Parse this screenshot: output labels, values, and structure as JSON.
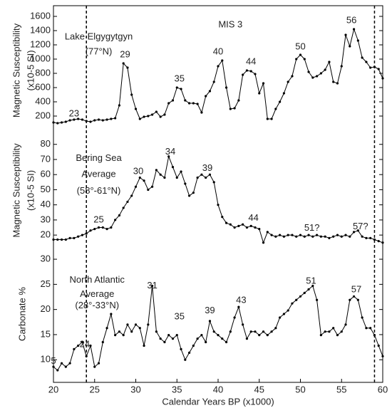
{
  "chart_data": [
    {
      "type": "line",
      "color": "#000000",
      "ylabel": [
        "Magnetic Susceptibility",
        "(x10-5 SI)"
      ],
      "name_lines": [
        "Lake Elgygytgyn",
        "(77°N)"
      ],
      "period_label": "MIS 3",
      "annotations": [
        "23",
        "29",
        "35",
        "40",
        "44",
        "50",
        "56"
      ],
      "ylim": [
        -70,
        1750
      ],
      "yticks": [
        200,
        400,
        600,
        800,
        1000,
        1200,
        1400,
        1600
      ],
      "x": [
        20,
        20.5,
        21,
        21.5,
        22,
        22.5,
        23,
        23.5,
        24,
        24.5,
        25,
        25.5,
        26,
        26.5,
        27,
        27.5,
        28,
        28.5,
        29,
        29.5,
        30,
        30.5,
        31,
        31.5,
        32,
        32.5,
        33,
        33.5,
        34,
        34.5,
        35,
        35.5,
        36,
        36.5,
        37,
        37.5,
        38,
        38.5,
        39,
        39.5,
        40,
        40.5,
        41,
        41.5,
        42,
        42.5,
        43,
        43.5,
        44,
        44.5,
        45,
        45.5,
        46,
        46.5,
        47,
        47.5,
        48,
        48.5,
        49,
        49.5,
        50,
        50.5,
        51,
        51.5,
        52,
        52.5,
        53,
        53.5,
        54,
        54.5,
        55,
        55.5,
        56,
        56.5,
        57,
        57.5,
        58,
        58.5,
        59,
        59.5,
        60
      ],
      "values": [
        110,
        100,
        110,
        120,
        140,
        150,
        160,
        150,
        130,
        120,
        140,
        150,
        140,
        150,
        160,
        170,
        350,
        940,
        880,
        500,
        300,
        160,
        190,
        200,
        220,
        260,
        190,
        220,
        380,
        420,
        600,
        580,
        420,
        380,
        380,
        370,
        250,
        480,
        550,
        680,
        900,
        980,
        600,
        300,
        310,
        420,
        780,
        840,
        830,
        790,
        520,
        660,
        160,
        160,
        300,
        400,
        520,
        680,
        760,
        1000,
        1060,
        1000,
        820,
        740,
        760,
        800,
        850,
        960,
        680,
        660,
        900,
        1340,
        1180,
        1420,
        1260,
        1020,
        960,
        880,
        890,
        860,
        730
      ]
    },
    {
      "type": "line",
      "color": "#000000",
      "ylabel": [
        "Magnetic Susceptibility",
        "(x10-5 SI)"
      ],
      "name_lines": [
        "Bering Sea",
        "Average",
        "(58°-61°N)"
      ],
      "annotations": [
        "25",
        "30",
        "34",
        "39",
        "44",
        "51?",
        "57?"
      ],
      "ylim": [
        13,
        86
      ],
      "yticks": [
        20,
        30,
        40,
        50,
        60,
        70,
        80
      ],
      "x": [
        20,
        20.5,
        21,
        21.5,
        22,
        22.5,
        23,
        23.5,
        24,
        24.5,
        25,
        25.5,
        26,
        26.5,
        27,
        27.5,
        28,
        28.5,
        29,
        29.5,
        30,
        30.5,
        31,
        31.5,
        32,
        32.5,
        33,
        33.5,
        34,
        34.5,
        35,
        35.5,
        36,
        36.5,
        37,
        37.5,
        38,
        38.5,
        39,
        39.5,
        40,
        40.5,
        41,
        41.5,
        42,
        42.5,
        43,
        43.5,
        44,
        44.5,
        45,
        45.5,
        46,
        46.5,
        47,
        47.5,
        48,
        48.5,
        49,
        49.5,
        50,
        50.5,
        51,
        51.5,
        52,
        52.5,
        53,
        53.5,
        54,
        54.5,
        55,
        55.5,
        56,
        56.5,
        57,
        57.5,
        58,
        58.5,
        59,
        59.5,
        60
      ],
      "values": [
        17,
        17,
        17,
        17,
        18,
        18,
        19,
        20,
        21,
        23,
        24,
        25,
        25,
        24,
        25,
        30,
        33,
        38,
        42,
        46,
        52,
        58,
        56,
        50,
        52,
        63,
        60,
        58,
        72,
        65,
        58,
        62,
        54,
        46,
        48,
        58,
        60,
        58,
        60,
        55,
        40,
        32,
        28,
        27,
        25,
        26,
        27,
        25,
        26,
        25,
        24,
        15,
        22,
        20,
        19,
        20,
        19,
        20,
        20,
        19,
        20,
        19,
        20,
        19,
        20,
        19,
        19,
        18,
        19,
        20,
        19,
        20,
        19,
        22,
        23,
        19,
        18,
        18,
        17,
        16,
        15
      ]
    },
    {
      "type": "line",
      "color": "#000000",
      "ylabel": [
        "Carbonate %"
      ],
      "name_lines": [
        "North Atlantic",
        "Average",
        "(28°-33°N)"
      ],
      "annotations": [
        "5",
        "24",
        "31",
        "35",
        "39",
        "43",
        "51",
        "57"
      ],
      "xlabel": "Calendar Years BP (x1000)",
      "xlim": [
        20,
        60
      ],
      "xticks": [
        20,
        25,
        30,
        35,
        40,
        45,
        50,
        55,
        60
      ],
      "vlines": [
        24,
        59
      ],
      "ylim": [
        5.5,
        32.7
      ],
      "yticks": [
        10,
        15,
        20,
        25,
        30
      ],
      "x": [
        20,
        20.5,
        21,
        21.5,
        22,
        22.5,
        23,
        23.5,
        24,
        24.5,
        25,
        25.5,
        26,
        26.5,
        27,
        27.5,
        28,
        28.5,
        29,
        29.5,
        30,
        30.5,
        31,
        31.5,
        32,
        32.5,
        33,
        33.5,
        34,
        34.5,
        35,
        35.5,
        36,
        36.5,
        37,
        37.5,
        38,
        38.5,
        39,
        39.5,
        40,
        40.5,
        41,
        41.5,
        42,
        42.5,
        43,
        43.5,
        44,
        44.5,
        45,
        45.5,
        46,
        46.5,
        47,
        47.5,
        48,
        48.5,
        49,
        49.5,
        50,
        50.5,
        51,
        51.5,
        52,
        52.5,
        53,
        53.5,
        54,
        54.5,
        55,
        55.5,
        56,
        56.5,
        57,
        57.5,
        58,
        58.5,
        59,
        59.5,
        60
      ],
      "values": [
        8.6,
        7.9,
        9.3,
        8.6,
        9.3,
        12.1,
        12.8,
        13.5,
        10.7,
        12.8,
        8.6,
        9.3,
        13.5,
        16.3,
        19.1,
        14.9,
        15.6,
        14.9,
        17,
        15.6,
        17,
        16.3,
        12.8,
        17,
        24.7,
        15.6,
        14.2,
        13.5,
        14.9,
        14.2,
        14.9,
        12.1,
        10,
        11.4,
        12.8,
        14.2,
        14.9,
        13.5,
        17.7,
        15.6,
        14.9,
        14.2,
        13.5,
        15.6,
        18.4,
        20.5,
        17,
        14.2,
        15.6,
        15.6,
        14.9,
        15.6,
        14.9,
        15.6,
        16.3,
        18.4,
        19.1,
        19.8,
        21.2,
        21.9,
        22.6,
        23.3,
        24,
        24.7,
        21.9,
        14.9,
        15.6,
        15.6,
        16.3,
        14.9,
        15.6,
        17,
        21.9,
        22.6,
        21.9,
        18.4,
        16.3,
        16.3,
        14.9,
        12.8,
        10.7
      ]
    }
  ]
}
